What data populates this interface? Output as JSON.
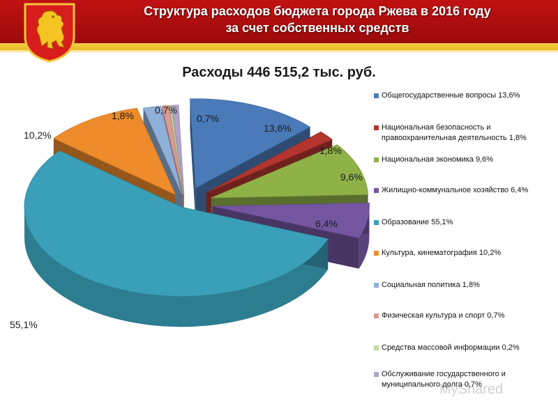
{
  "header": {
    "title_line1": "Структура расходов бюджета города Ржева в 2016 году",
    "title_line2": "за счет собственных средств"
  },
  "chart_data": {
    "type": "pie",
    "title": "Расходы  446 515,2 тыс. руб.",
    "legend_position": "right",
    "slices": [
      {
        "name": "Общегосударственные вопросы 13,6%",
        "value": 13.6,
        "label": "13,6%",
        "color": "#4a7ab8"
      },
      {
        "name": "Национальная безопасность и правоохранительная деятельность 1,8%",
        "value": 1.8,
        "label": "1,8%",
        "color": "#b3352e"
      },
      {
        "name": "Национальная экономика 9,6%",
        "value": 9.6,
        "label": "9,6%",
        "color": "#8fb247"
      },
      {
        "name": "Жилищно-коммунальное хозяйство 6,4%",
        "value": 6.4,
        "label": "6,4%",
        "color": "#7456a0"
      },
      {
        "name": "Образование 55,1%",
        "value": 55.1,
        "label": "55,1%",
        "color": "#3aa0b9"
      },
      {
        "name": "Культура, кинематография 10,2%",
        "value": 10.2,
        "label": "10,2%",
        "color": "#ee8b2a"
      },
      {
        "name": "Социальная политика 1,8%",
        "value": 1.8,
        "label": "1,8%",
        "color": "#8fb0d8"
      },
      {
        "name": "Физическая культура и спорт 0,7%",
        "value": 0.7,
        "label": "0,7%",
        "color": "#d99a94"
      },
      {
        "name": "Средства массовой информации 0,2%",
        "value": 0.2,
        "label": "",
        "color": "#c2d8a0"
      },
      {
        "name": "Обслуживание государственного и муниципального долга 0,7%",
        "value": 0.7,
        "label": "0,7%",
        "color": "#b1a2c9"
      }
    ]
  },
  "watermark": "MyShared"
}
